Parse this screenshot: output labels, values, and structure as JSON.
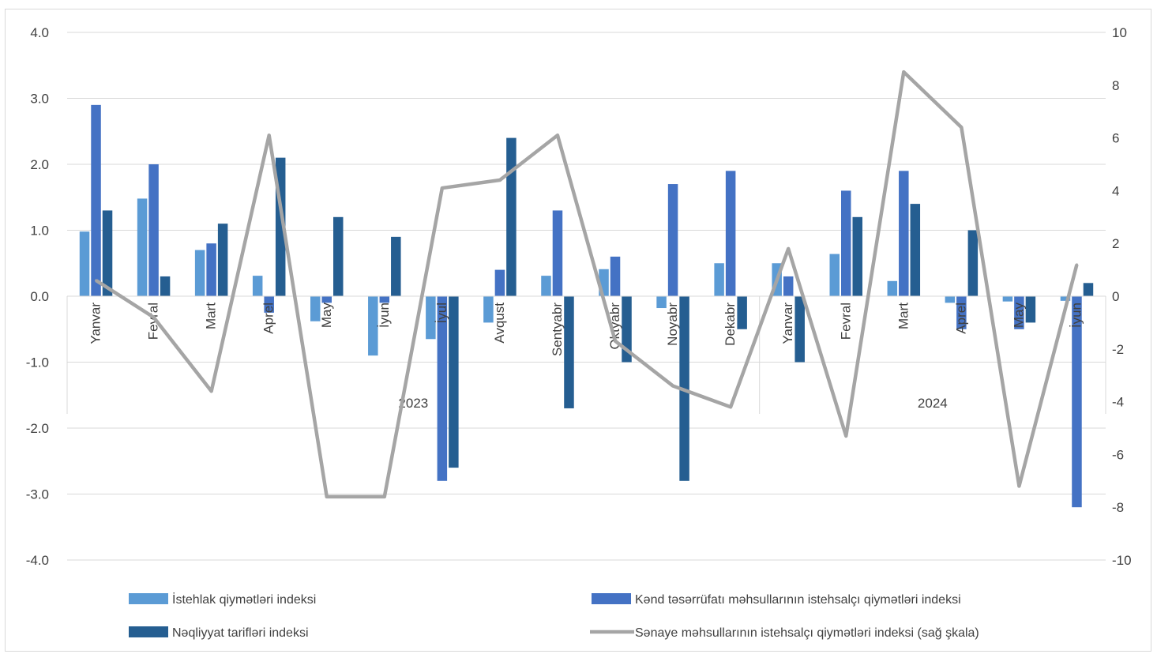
{
  "chart_data": {
    "type": "bar",
    "title": "",
    "xlabel": "",
    "ylabel": "",
    "categories": [
      "Yanvar",
      "Fevral",
      "Mart",
      "Aprel",
      "May",
      "İyun",
      "İyul",
      "Avqust",
      "Sentyabr",
      "Oktyabr",
      "Noyabr",
      "Dekabr",
      "Yanvar",
      "Fevral",
      "Mart",
      "Aprel",
      "May",
      "İyun"
    ],
    "groups": [
      {
        "label": "2023",
        "count": 12
      },
      {
        "label": "2024",
        "count": 6
      }
    ],
    "ylim": [
      -4,
      4
    ],
    "y_ticks": [
      "4.0",
      "3.0",
      "2.0",
      "1.0",
      "0.0",
      "-1.0",
      "-2.0",
      "-3.0",
      "-4.0"
    ],
    "y2lim": [
      -10,
      10
    ],
    "y2_ticks": [
      "10",
      "8",
      "6",
      "4",
      "2",
      "0",
      "-2",
      "-4",
      "-6",
      "-8",
      "-10"
    ],
    "grid": true,
    "legend_position": "bottom",
    "series": [
      {
        "name": "İstehlak qiymətləri indeksi",
        "type": "bar",
        "axis": "left",
        "color": "#5b9bd5",
        "values": [
          0.98,
          1.48,
          0.7,
          0.31,
          -0.38,
          -0.9,
          -0.65,
          -0.4,
          0.31,
          0.41,
          -0.18,
          0.5,
          0.5,
          0.64,
          0.23,
          -0.1,
          -0.08,
          -0.07
        ]
      },
      {
        "name": "Kənd təsərrüfatı məhsullarının istehsalçı qiymətləri indeksi",
        "type": "bar",
        "axis": "left",
        "color": "#4472c4",
        "values": [
          2.9,
          2.0,
          0.8,
          -0.25,
          -0.1,
          -0.1,
          -2.8,
          0.4,
          1.3,
          0.6,
          1.7,
          1.9,
          0.3,
          1.6,
          1.9,
          -0.5,
          -0.5,
          -3.2
        ]
      },
      {
        "name": "Nəqliyyat tarifləri indeksi",
        "type": "bar",
        "axis": "left",
        "color": "#255e91",
        "values": [
          1.3,
          0.3,
          1.1,
          2.1,
          1.2,
          0.9,
          -2.6,
          2.4,
          -1.7,
          -1.0,
          -2.8,
          -0.5,
          -1.0,
          1.2,
          1.4,
          1.0,
          -0.4,
          0.2
        ]
      },
      {
        "name": "Sənaye məhsullarının istehsalçı qiymətləri indeksi (sağ şkala)",
        "type": "line",
        "axis": "right",
        "color": "#a5a5a5",
        "values": [
          0.6,
          -0.8,
          -3.6,
          6.1,
          -7.6,
          -7.6,
          4.1,
          4.4,
          6.1,
          -1.7,
          -3.4,
          -4.2,
          1.8,
          -5.3,
          8.5,
          6.4,
          -7.2,
          1.2
        ]
      }
    ]
  }
}
